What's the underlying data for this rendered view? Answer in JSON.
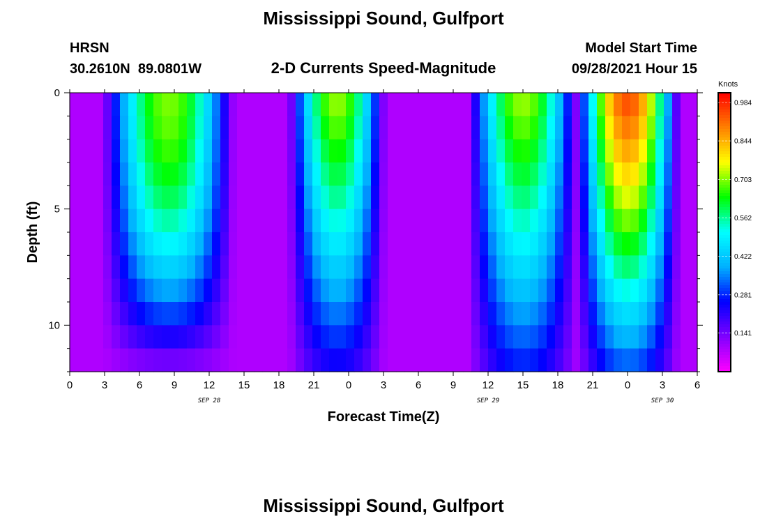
{
  "page": {
    "title": "Mississippi Sound, Gulfport",
    "footer_title": "Mississippi Sound, Gulfport",
    "station_code": "HRSN",
    "station_coords": "30.2610N  89.0801W",
    "model_label": "Model Start Time",
    "model_time": "09/28/2021 Hour 15"
  },
  "chart_data": {
    "type": "heatmap",
    "title": "2-D Currents Speed-Magnitude",
    "xlabel": "Forecast Time(Z)",
    "ylabel": "Depth (ft)",
    "x_hours_range": [
      0,
      54
    ],
    "x_tick_hours": [
      0,
      3,
      6,
      9,
      12,
      15,
      18,
      21,
      24,
      27,
      30,
      33,
      36,
      39,
      42,
      45,
      48,
      51,
      54
    ],
    "x_tick_labels": [
      "0",
      "3",
      "6",
      "9",
      "12",
      "15",
      "18",
      "21",
      "0",
      "3",
      "6",
      "9",
      "12",
      "15",
      "18",
      "21",
      "0",
      "3",
      "6"
    ],
    "date_labels": [
      {
        "text": "SEP 28",
        "hour": 12
      },
      {
        "text": "SEP 29",
        "hour": 36
      },
      {
        "text": "SEP 30",
        "hour": 51
      }
    ],
    "depth_range_ft": [
      0,
      12
    ],
    "y_ticks": [
      0,
      5,
      10
    ],
    "y_tick_labels": [
      "0",
      "5",
      "10"
    ],
    "colorbar": {
      "label": "Knots",
      "range": [
        0.0,
        1.02
      ],
      "ticks": [
        0.141,
        0.281,
        0.422,
        0.562,
        0.703,
        0.844,
        0.984
      ],
      "tick_labels": [
        "0.141",
        "0.281",
        "0.422",
        "0.562",
        "0.703",
        "0.844",
        "0.984"
      ],
      "colors": [
        "#ff00ff",
        "#8000ff",
        "#0000ff",
        "#00b0ff",
        "#00ffff",
        "#00ff00",
        "#ffff00",
        "#ff8000",
        "#ff0000"
      ]
    },
    "ebb_flood_peaks": [
      {
        "center_hour": 8.5,
        "half_width": 3.8,
        "surface_speed": 0.7,
        "bottom_speed": 0.1,
        "profile_power": 1.8
      },
      {
        "center_hour": 23.0,
        "half_width": 2.8,
        "surface_speed": 0.72,
        "bottom_speed": 0.22,
        "profile_power": 1.2
      },
      {
        "center_hour": 39.0,
        "half_width": 3.2,
        "surface_speed": 0.72,
        "bottom_speed": 0.26,
        "profile_power": 1.2
      },
      {
        "center_hour": 48.0,
        "half_width": 3.0,
        "surface_speed": 0.95,
        "bottom_speed": 0.3,
        "profile_power": 1.2
      }
    ],
    "slack_speed": 0.08
  }
}
